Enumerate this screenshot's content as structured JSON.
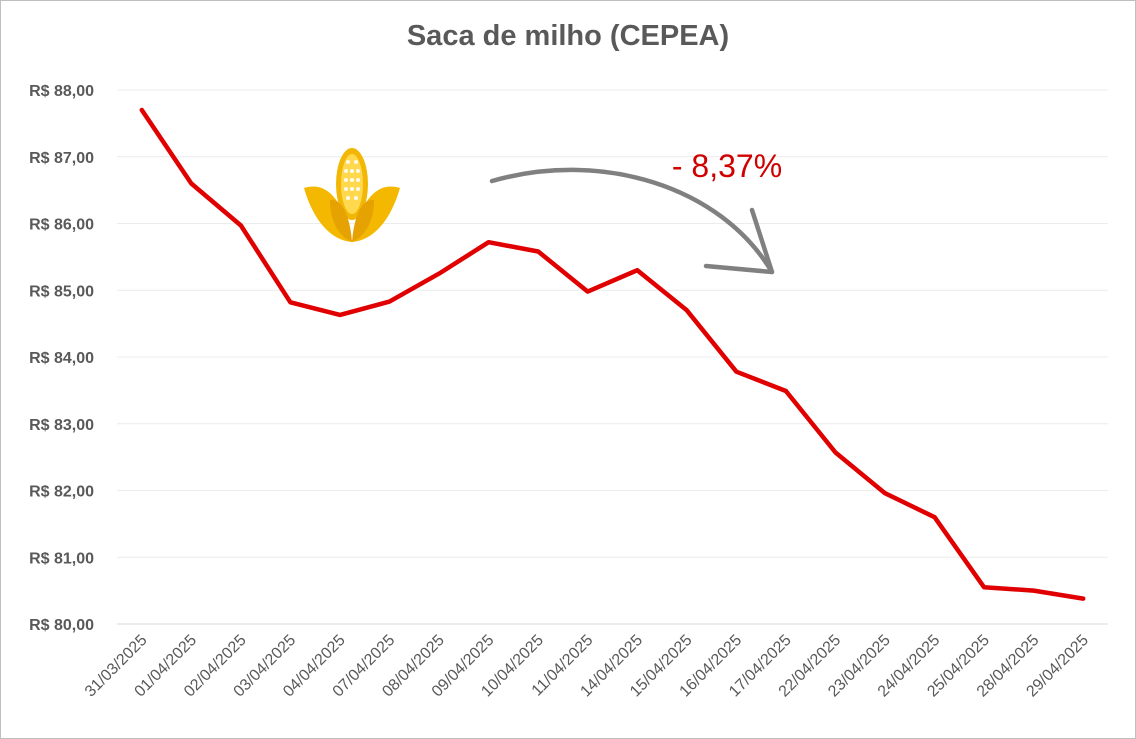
{
  "chart_data": {
    "type": "line",
    "title": "Saca de milho (CEPEA)",
    "xlabel": "",
    "ylabel": "",
    "ylim": [
      80,
      88
    ],
    "y_ticks": [
      "R$ 80,00",
      "R$ 81,00",
      "R$ 82,00",
      "R$ 83,00",
      "R$ 84,00",
      "R$ 85,00",
      "R$ 86,00",
      "R$ 87,00",
      "R$ 88,00"
    ],
    "categories": [
      "31/03/2025",
      "01/04/2025",
      "02/04/2025",
      "03/04/2025",
      "04/04/2025",
      "07/04/2025",
      "08/04/2025",
      "09/04/2025",
      "10/04/2025",
      "11/04/2025",
      "14/04/2025",
      "15/04/2025",
      "16/04/2025",
      "17/04/2025",
      "22/04/2025",
      "23/04/2025",
      "24/04/2025",
      "25/04/2025",
      "28/04/2025",
      "29/04/2025"
    ],
    "series": [
      {
        "name": "Saca de milho",
        "color": "#e00000",
        "values": [
          87.7,
          86.6,
          85.97,
          84.82,
          84.63,
          84.83,
          85.25,
          85.72,
          85.58,
          84.98,
          85.3,
          84.7,
          83.78,
          83.49,
          82.57,
          81.96,
          81.6,
          80.55,
          80.5,
          80.38
        ]
      }
    ],
    "grid": true,
    "legend": "none",
    "annotation": {
      "text": "- 8,37%",
      "color": "#d00000",
      "arrow": "curved-down-right"
    },
    "icon": "corn-icon"
  }
}
